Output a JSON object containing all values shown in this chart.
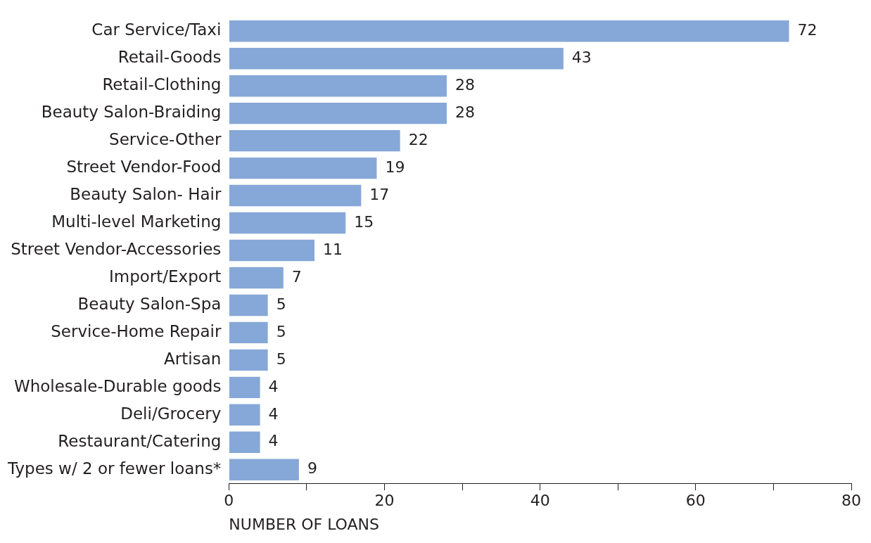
{
  "chart_data": {
    "type": "bar",
    "orientation": "horizontal",
    "xlabel": "NUMBER OF LOANS",
    "categories": [
      "Car Service/Taxi",
      "Retail-Goods",
      "Retail-Clothing",
      "Beauty Salon-Braiding",
      "Service-Other",
      "Street Vendor-Food",
      "Beauty Salon- Hair",
      "Multi-level Marketing",
      "Street Vendor-Accessories",
      "Import/Export",
      "Beauty Salon-Spa",
      "Service-Home Repair",
      "Artisan",
      "Wholesale-Durable goods",
      "Deli/Grocery",
      "Restaurant/Catering",
      "Types w/ 2 or fewer loans*"
    ],
    "values": [
      72,
      43,
      28,
      28,
      22,
      19,
      17,
      15,
      11,
      7,
      5,
      5,
      5,
      4,
      4,
      4,
      9
    ],
    "color": "#86a8d8",
    "data_labels": true,
    "grid": false,
    "legend": false,
    "xlim": [
      0,
      80
    ],
    "xticks": [
      0,
      {
        "value": 10,
        "label": null
      },
      20,
      {
        "value": 30,
        "label": null
      },
      40,
      {
        "value": 50,
        "label": null
      },
      60,
      {
        "value": 70,
        "label": null
      },
      80
    ]
  }
}
